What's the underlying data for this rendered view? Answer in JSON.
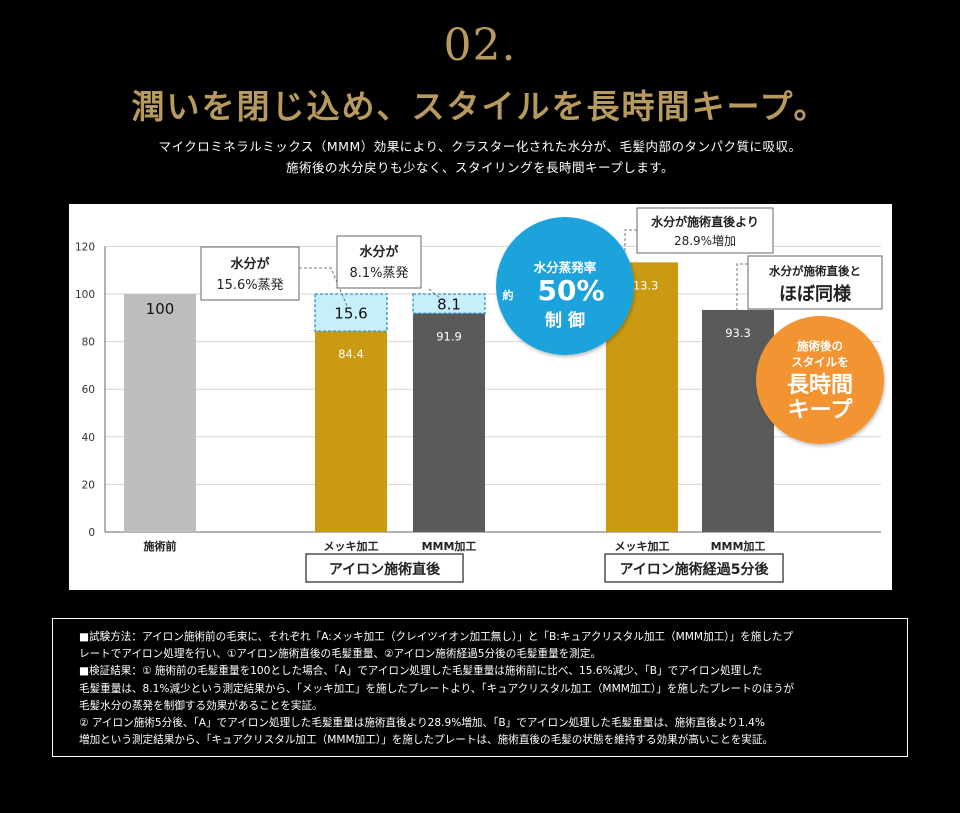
{
  "header": {
    "number": "02.",
    "title": "潤いを閉じ込め、スタイルを長時間キープ。",
    "lead": [
      "マイクロミネラルミックス（MMM）効果により、クラスター化された水分が、毛髪内部のタンパク質に吸収。",
      "施術後の水分戻りも少なく、スタイリングを長時間キープします。"
    ]
  },
  "colors": {
    "background": "#000000",
    "gold_text": "#b89a5e",
    "bar_before": "#bdbdbd",
    "bar_mekki": "#c99a12",
    "bar_mmm": "#5a5a5a",
    "evaporated": "#c7eefb",
    "circle_blue": "#1aa3dc",
    "circle_orange": "#f29431"
  },
  "chart_data": {
    "type": "bar",
    "ylim": [
      0,
      120
    ],
    "yticks": [
      "0",
      "20",
      "40",
      "60",
      "80",
      "100",
      "120"
    ],
    "grid": true,
    "bars": [
      {
        "label": "施術前",
        "value": 100,
        "value_label": "100",
        "color_key": "bar_before"
      },
      {
        "label": "メッキ加工",
        "value": 84.4,
        "value_label": "84.4",
        "evaporated": 15.6,
        "evaporated_label": "15.6",
        "color_key": "bar_mekki"
      },
      {
        "label": "MMM加工",
        "value": 91.9,
        "value_label": "91.9",
        "evaporated": 8.1,
        "evaporated_label": "8.1",
        "color_key": "bar_mmm"
      },
      {
        "label": "メッキ加工",
        "value": 113.3,
        "value_label": "113.3",
        "color_key": "bar_mekki"
      },
      {
        "label": "MMM加工",
        "value": 93.3,
        "value_label": "93.3",
        "color_key": "bar_mmm"
      }
    ],
    "groups": [
      "アイロン施術直後",
      "アイロン施術経過5分後"
    ],
    "callouts": [
      {
        "lines": [
          "水分が",
          "15.6%蒸発"
        ]
      },
      {
        "lines": [
          "水分が",
          "8.1%蒸発"
        ]
      },
      {
        "lines": [
          "水分が施術直後より",
          "28.9%増加"
        ]
      },
      {
        "lines": [
          "水分が施術直後と",
          "ほぼ同様"
        ]
      }
    ],
    "blue_circle": {
      "line1": "水分蒸発率",
      "prefix": "約",
      "value": "50%",
      "line3": "制 御"
    },
    "orange_circle": {
      "line1": "施術後の",
      "line2": "スタイルを",
      "line3": "長時間",
      "line4": "キープ"
    }
  },
  "note": {
    "lines": [
      "■試験方法：アイロン施術前の毛束に、それぞれ「A:メッキ加工（クレイツイオン加工無し）」と「B:キュアクリスタル加工（MMM加工）」を施したプ",
      "レートでアイロン処理を行い、①アイロン施術直後の毛髪重量、②アイロン施術経過5分後の毛髪重量を測定。",
      "■検証結果：①  施術前の毛髪重量を100とした場合、「A」でアイロン処理した毛髪重量は施術前に比べ、15.6%減少、「B」でアイロン処理した",
      "毛髪重量は、8.1%減少という測定結果から、「メッキ加工」を施したプレートより、「キュアクリスタル加工（MMM加工）」を施したプレートのほうが",
      "毛髪水分の蒸発を制御する効果があることを実証。",
      "②  アイロン施術5分後、「A」でアイロン処理した毛髪重量は施術直後より28.9%増加、「B」でアイロン処理した毛髪重量は、施術直後より1.4%",
      "増加という測定結果から、「キュアクリスタル加工（MMM加工）」を施したプレートは、施術直後の毛髪の状態を維持する効果が高いことを実証。"
    ]
  }
}
